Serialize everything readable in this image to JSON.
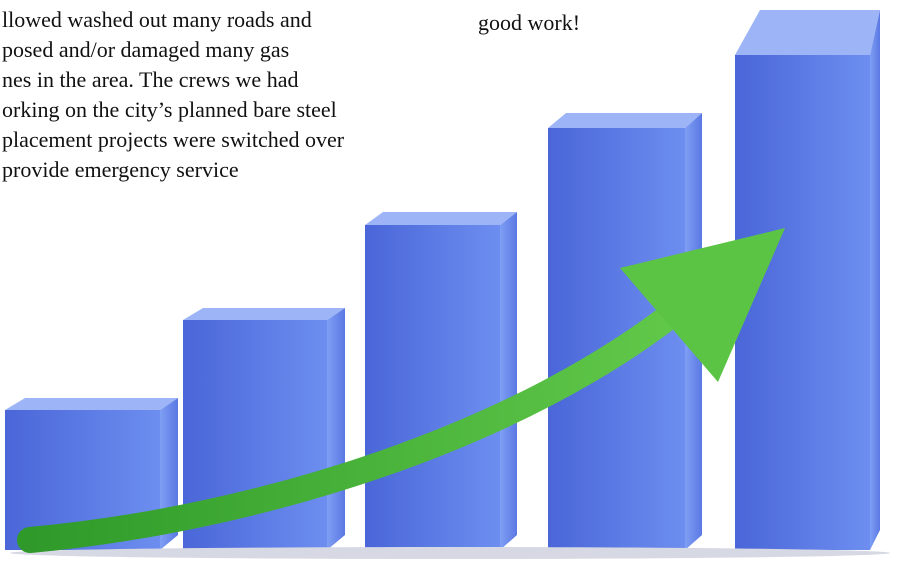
{
  "left_column": {
    "lines": [
      "llowed washed out many roads and",
      "posed and/or damaged many gas",
      "nes in the area.  The crews we had",
      "orking on the city’s planned bare steel",
      "placement projects were switched over",
      "provide emergency service"
    ]
  },
  "right_column": {
    "lines": [
      "good work!"
    ]
  }
}
